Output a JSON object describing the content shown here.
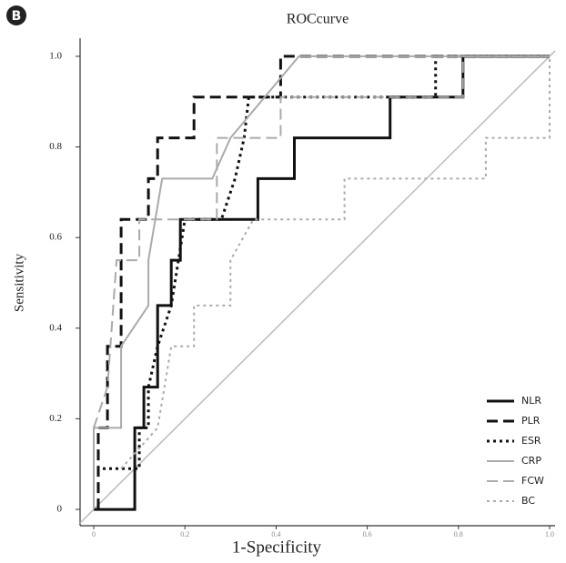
{
  "panel_label": "B",
  "chart_data": {
    "type": "line",
    "title": "ROCcurve",
    "x_label": "1-Specificity",
    "y_label": "Sensitivity",
    "xlim": [
      -0.03,
      1.012
    ],
    "ylim": [
      -0.036,
      1.04
    ],
    "xticks": [
      0,
      0.2,
      0.4,
      0.6,
      0.8,
      {
        "value": 1,
        "label": "1.0"
      }
    ],
    "yticks": [
      0,
      0.2,
      0.4,
      0.6,
      0.8,
      {
        "value": 1,
        "label": "1.0"
      }
    ],
    "legend": "lower right",
    "series": [
      {
        "name": "NLR",
        "color": "#111111",
        "dash": "solid",
        "width": 3,
        "x": [
          0,
          0.09,
          0.09,
          0.11,
          0.11,
          0.14,
          0.14,
          0.17,
          0.17,
          0.19,
          0.19,
          0.36,
          0.36,
          0.44,
          0.44,
          0.65,
          0.65,
          0.81,
          0.81,
          1
        ],
        "values": [
          0,
          0,
          0.18,
          0.18,
          0.27,
          0.27,
          0.45,
          0.45,
          0.55,
          0.55,
          0.64,
          0.64,
          0.73,
          0.73,
          0.82,
          0.82,
          0.91,
          0.91,
          1,
          1
        ]
      },
      {
        "name": "PLR",
        "color": "#111111",
        "dash": "dashed",
        "width": 3,
        "x": [
          0.01,
          0.01,
          0.03,
          0.03,
          0.06,
          0.06,
          0.12,
          0.12,
          0.14,
          0.14,
          0.22,
          0.22,
          0.41,
          0.41,
          1
        ],
        "values": [
          0,
          0.18,
          0.18,
          0.36,
          0.36,
          0.64,
          0.64,
          0.73,
          0.73,
          0.82,
          0.82,
          0.91,
          0.91,
          1,
          1
        ]
      },
      {
        "name": "ESR",
        "color": "#111111",
        "dash": "dotted",
        "width": 3,
        "x": [
          0.02,
          0.1,
          0.1,
          0.12,
          0.12,
          0.14,
          0.17,
          0.2,
          0.28,
          0.31,
          0.33,
          0.34,
          0.75,
          0.75,
          1
        ],
        "values": [
          0.09,
          0.09,
          0.18,
          0.18,
          0.27,
          0.36,
          0.45,
          0.64,
          0.64,
          0.73,
          0.82,
          0.91,
          0.91,
          1,
          1
        ]
      },
      {
        "name": "CRP",
        "color": "#aaaaaa",
        "dash": "solid",
        "width": 2,
        "x": [
          0,
          0,
          0.06,
          0.06,
          0.12,
          0.12,
          0.15,
          0.26,
          0.3,
          0.45,
          1
        ],
        "values": [
          0,
          0.18,
          0.18,
          0.36,
          0.45,
          0.55,
          0.73,
          0.73,
          0.82,
          1,
          1
        ]
      },
      {
        "name": "FCW",
        "color": "#aaaaaa",
        "dash": "dashed",
        "width": 2,
        "x": [
          0,
          0.03,
          0.05,
          0.1,
          0.1,
          0.27,
          0.27,
          0.41,
          0.41,
          0.81,
          0.81,
          1
        ],
        "values": [
          0.18,
          0.27,
          0.55,
          0.55,
          0.64,
          0.64,
          0.82,
          0.82,
          0.91,
          0.91,
          1,
          1
        ]
      },
      {
        "name": "BC",
        "color": "#aaaaaa",
        "dash": "dotted",
        "width": 2,
        "x": [
          0.06,
          0.14,
          0.17,
          0.22,
          0.22,
          0.3,
          0.3,
          0.35,
          0.55,
          0.55,
          0.86,
          0.86,
          1,
          1
        ],
        "values": [
          0.09,
          0.18,
          0.36,
          0.36,
          0.45,
          0.45,
          0.55,
          0.64,
          0.64,
          0.73,
          0.73,
          0.82,
          0.82,
          1
        ]
      }
    ]
  }
}
